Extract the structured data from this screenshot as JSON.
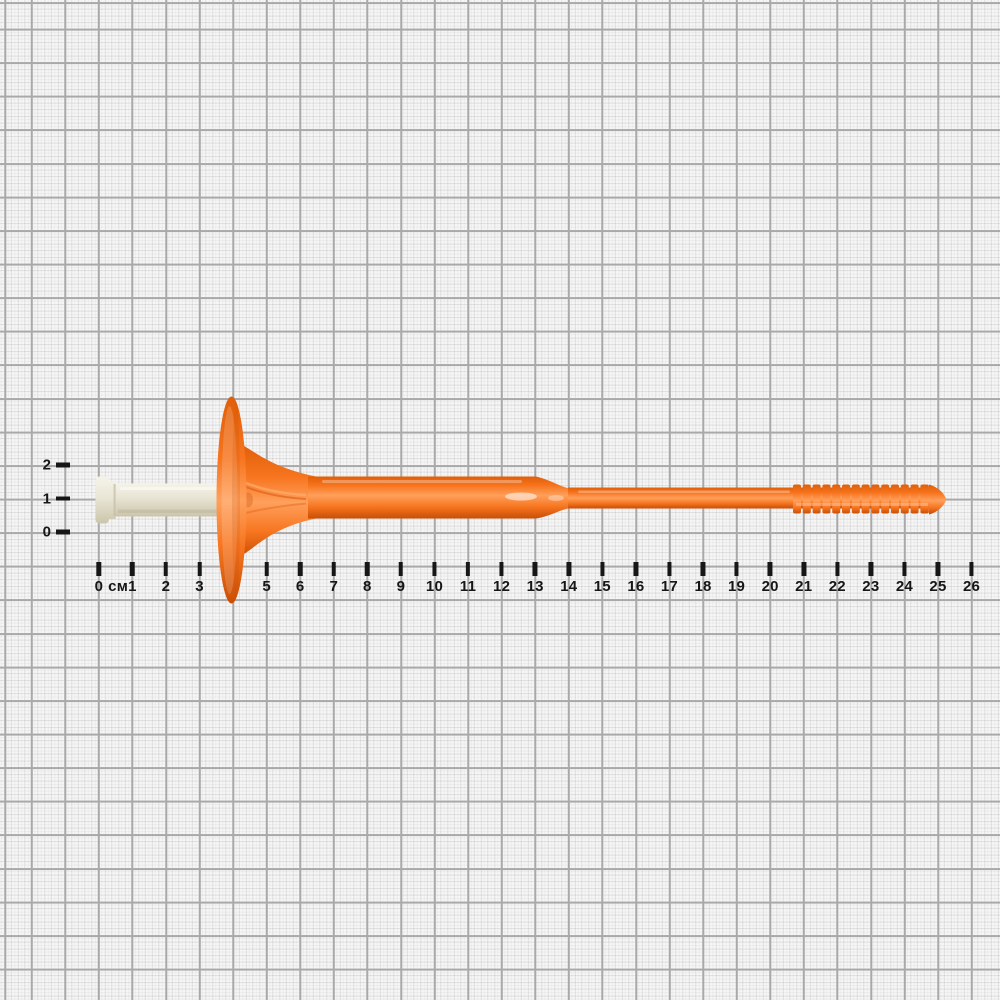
{
  "subject": {
    "type": "insulation-anchor-with-plastic-nail",
    "colors": {
      "orange-light": "#ffa05c",
      "orange-main": "#f7751f",
      "orange-dark": "#e05e08",
      "orange-deep": "#c94e05",
      "nail-light": "#f5f3e9",
      "nail-main": "#eae6d6",
      "nail-dark": "#cbc5ab",
      "tick": "#161616",
      "grid-major": "#a9a9a9",
      "grid-bg": "#f6f6f6"
    }
  },
  "horizontal_ruler": {
    "unit": "см",
    "labels": [
      "0",
      "1",
      "2",
      "3",
      "4",
      "5",
      "6",
      "7",
      "8",
      "9",
      "10",
      "11",
      "12",
      "13",
      "14",
      "15",
      "16",
      "17",
      "18",
      "19",
      "20",
      "21",
      "22",
      "23",
      "24",
      "25",
      "26"
    ]
  },
  "vertical_ruler": {
    "labels": [
      "2",
      "1",
      "0"
    ]
  }
}
